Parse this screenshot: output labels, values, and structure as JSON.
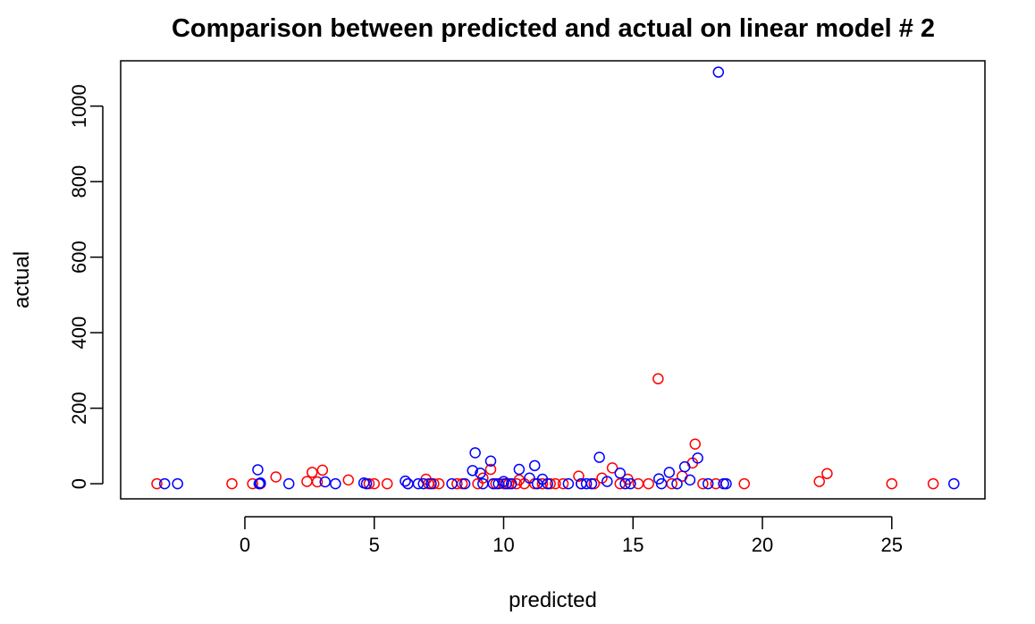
{
  "chart_data": {
    "type": "scatter",
    "title": "Comparison between predicted and actual on linear model # 2",
    "xlabel": "predicted",
    "ylabel": "actual",
    "xlim": [
      -4.8,
      28.6
    ],
    "ylim": [
      -40,
      1120
    ],
    "xticks": [
      0,
      5,
      10,
      15,
      20,
      25
    ],
    "yticks": [
      0,
      200,
      400,
      600,
      800,
      1000
    ],
    "grid": false,
    "marker": "open-circle",
    "series": [
      {
        "color": "#ff0000",
        "points": [
          [
            -3.4,
            0
          ],
          [
            -0.5,
            0
          ],
          [
            0.3,
            0
          ],
          [
            0.6,
            0
          ],
          [
            1.2,
            18
          ],
          [
            2.4,
            6
          ],
          [
            2.6,
            30
          ],
          [
            2.8,
            5
          ],
          [
            3.0,
            36
          ],
          [
            4.0,
            10
          ],
          [
            4.8,
            0
          ],
          [
            5.0,
            0
          ],
          [
            5.5,
            0
          ],
          [
            6.3,
            0
          ],
          [
            7.0,
            12
          ],
          [
            7.1,
            0
          ],
          [
            7.3,
            0
          ],
          [
            7.5,
            0
          ],
          [
            8.2,
            0
          ],
          [
            8.4,
            0
          ],
          [
            9.0,
            0
          ],
          [
            9.2,
            15
          ],
          [
            9.5,
            38
          ],
          [
            9.7,
            0
          ],
          [
            10.0,
            0
          ],
          [
            10.2,
            0
          ],
          [
            10.5,
            0
          ],
          [
            10.6,
            10
          ],
          [
            10.8,
            0
          ],
          [
            11.2,
            0
          ],
          [
            11.5,
            0
          ],
          [
            11.8,
            0
          ],
          [
            12.0,
            0
          ],
          [
            12.3,
            0
          ],
          [
            12.9,
            20
          ],
          [
            13.0,
            0
          ],
          [
            13.5,
            0
          ],
          [
            13.8,
            15
          ],
          [
            14.2,
            42
          ],
          [
            14.5,
            0
          ],
          [
            14.8,
            12
          ],
          [
            15.2,
            0
          ],
          [
            15.6,
            0
          ],
          [
            15.97,
            278
          ],
          [
            16.5,
            0
          ],
          [
            16.9,
            20
          ],
          [
            17.3,
            55
          ],
          [
            17.4,
            105
          ],
          [
            17.7,
            0
          ],
          [
            18.2,
            0
          ],
          [
            19.3,
            0
          ],
          [
            22.2,
            6
          ],
          [
            22.5,
            27
          ],
          [
            25.0,
            0
          ],
          [
            26.6,
            0
          ]
        ]
      },
      {
        "color": "#0000ff",
        "points": [
          [
            -3.1,
            0
          ],
          [
            -2.6,
            0
          ],
          [
            0.5,
            37
          ],
          [
            0.55,
            0
          ],
          [
            0.6,
            2
          ],
          [
            1.7,
            0
          ],
          [
            3.1,
            5
          ],
          [
            3.5,
            0
          ],
          [
            4.6,
            2
          ],
          [
            4.7,
            0
          ],
          [
            6.2,
            7
          ],
          [
            6.3,
            0
          ],
          [
            6.7,
            0
          ],
          [
            6.9,
            0
          ],
          [
            7.2,
            0
          ],
          [
            8.0,
            0
          ],
          [
            8.5,
            0
          ],
          [
            8.8,
            35
          ],
          [
            8.9,
            82
          ],
          [
            9.1,
            28
          ],
          [
            9.2,
            0
          ],
          [
            9.5,
            60
          ],
          [
            9.6,
            0
          ],
          [
            9.8,
            0
          ],
          [
            10.0,
            6
          ],
          [
            10.1,
            0
          ],
          [
            10.3,
            0
          ],
          [
            10.6,
            38
          ],
          [
            11.0,
            15
          ],
          [
            11.2,
            48
          ],
          [
            11.3,
            0
          ],
          [
            11.5,
            12
          ],
          [
            11.7,
            0
          ],
          [
            12.5,
            0
          ],
          [
            13.0,
            0
          ],
          [
            13.2,
            0
          ],
          [
            13.4,
            0
          ],
          [
            13.7,
            70
          ],
          [
            14.0,
            6
          ],
          [
            14.5,
            28
          ],
          [
            14.7,
            0
          ],
          [
            14.9,
            0
          ],
          [
            16.0,
            13
          ],
          [
            16.1,
            0
          ],
          [
            16.4,
            30
          ],
          [
            16.7,
            0
          ],
          [
            17.0,
            45
          ],
          [
            17.2,
            10
          ],
          [
            17.5,
            68
          ],
          [
            17.9,
            0
          ],
          [
            18.3,
            1090
          ],
          [
            18.5,
            0
          ],
          [
            18.6,
            0
          ],
          [
            27.4,
            0
          ]
        ]
      }
    ]
  }
}
